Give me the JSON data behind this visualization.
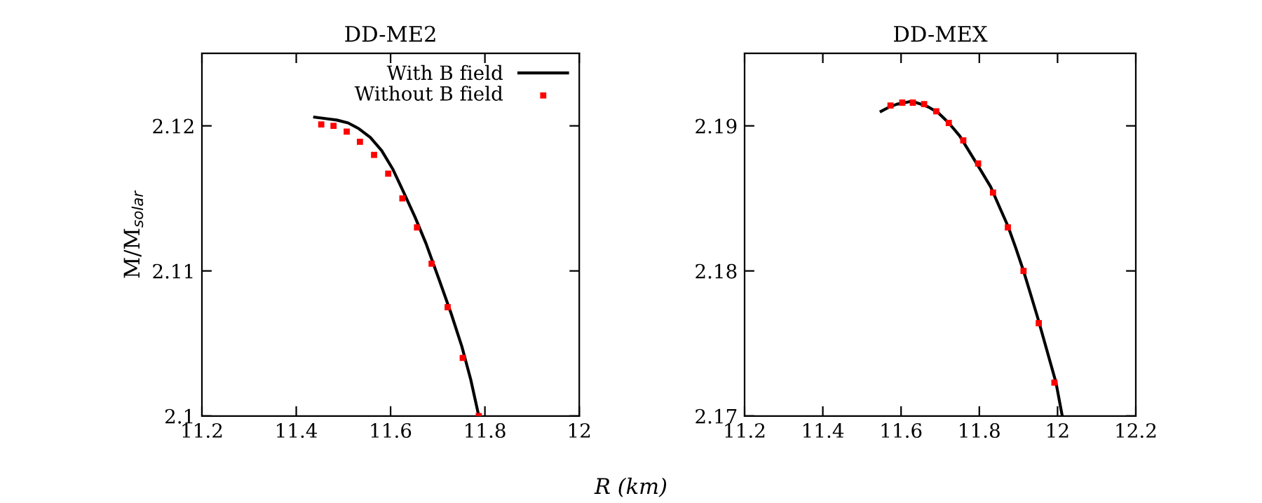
{
  "chart_data": [
    {
      "type": "line",
      "title": "DD-ME2",
      "xlabel": "R (km)",
      "ylabel": "M/M$_{solar}$",
      "xlim": [
        11.2,
        12
      ],
      "ylim": [
        2.1,
        2.125
      ],
      "xticks": [
        11.2,
        11.4,
        11.6,
        11.8,
        12
      ],
      "yticks": [
        2.1,
        2.11,
        2.12
      ],
      "legend": "top right",
      "grid": false,
      "series": [
        {
          "name": "With B field",
          "color": "#000000",
          "marker": "none",
          "x": [
            11.439,
            11.462,
            11.486,
            11.51,
            11.533,
            11.557,
            11.581,
            11.605,
            11.628,
            11.652,
            11.675,
            11.704,
            11.728,
            11.751,
            11.77,
            11.787
          ],
          "values": [
            2.1206,
            2.1205,
            2.1204,
            2.1202,
            2.1198,
            2.1192,
            2.1183,
            2.117,
            2.1154,
            2.1137,
            2.1119,
            2.1093,
            2.1071,
            2.1048,
            2.1025,
            2.1
          ]
        },
        {
          "name": "Without B field",
          "type": "scatter",
          "color": "#ff0000",
          "marker": "square",
          "x": [
            11.453,
            11.479,
            11.507,
            11.535,
            11.565,
            11.595,
            11.625,
            11.656,
            11.687,
            11.721,
            11.753,
            11.787
          ],
          "values": [
            2.1201,
            2.12,
            2.1196,
            2.1189,
            2.118,
            2.1167,
            2.115,
            2.113,
            2.1105,
            2.1075,
            2.104,
            2.1
          ]
        }
      ]
    },
    {
      "type": "line",
      "title": "DD-MEX",
      "xlim": [
        11.2,
        12.2
      ],
      "ylim": [
        2.17,
        2.195
      ],
      "xticks": [
        11.2,
        11.4,
        11.6,
        11.8,
        12,
        12.2
      ],
      "yticks": [
        2.17,
        2.18,
        2.19
      ],
      "grid": false,
      "series": [
        {
          "color": "#000000",
          "marker": "none",
          "x": [
            11.549,
            11.57,
            11.59,
            11.61,
            11.627,
            11.65,
            11.67,
            11.695,
            11.722,
            11.75,
            11.775,
            11.8,
            11.829,
            11.85,
            11.873,
            11.893,
            11.913,
            11.93,
            11.949,
            11.972,
            11.996,
            12.012
          ],
          "values": [
            2.191,
            2.1913,
            2.1915,
            2.1916,
            2.1917,
            2.1915,
            2.1913,
            2.1909,
            2.1902,
            2.1893,
            2.1882,
            2.1871,
            2.1858,
            2.1845,
            2.1831,
            2.1816,
            2.18,
            2.1785,
            2.1768,
            2.1746,
            2.1723,
            2.17
          ]
        },
        {
          "type": "scatter",
          "color": "#ff0000",
          "marker": "square",
          "x": [
            11.573,
            11.603,
            11.63,
            11.659,
            11.69,
            11.722,
            11.759,
            11.797,
            11.835,
            11.873,
            11.913,
            11.952,
            11.992
          ],
          "values": [
            2.1914,
            2.1916,
            2.1916,
            2.1915,
            2.191,
            2.1902,
            2.189,
            2.1874,
            2.1854,
            2.183,
            2.18,
            2.1764,
            2.1723
          ]
        }
      ]
    }
  ]
}
